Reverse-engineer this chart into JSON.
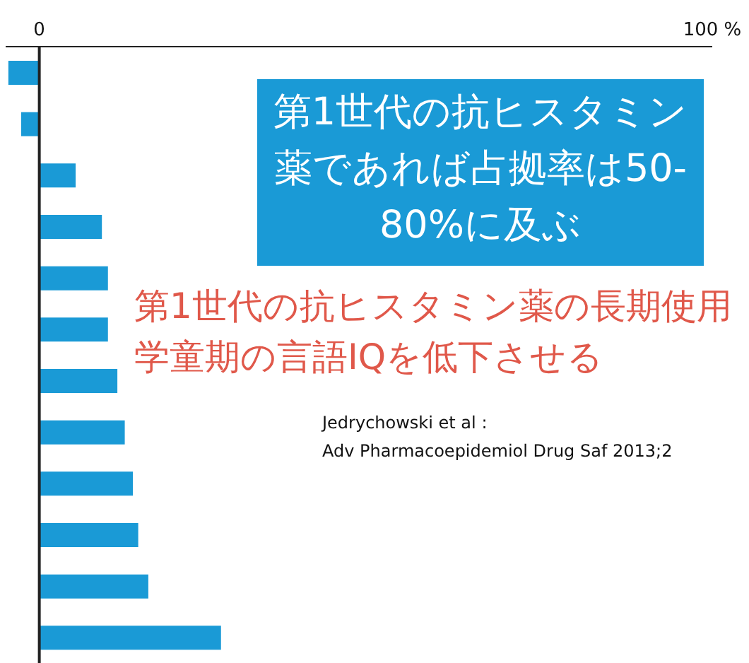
{
  "chart_data": {
    "type": "bar",
    "orientation": "horizontal",
    "categories": [
      null,
      null,
      null,
      null,
      null,
      null,
      null,
      null,
      null,
      null,
      null,
      null
    ],
    "values": [
      -4.6,
      -2.7,
      5.4,
      9.3,
      10.2,
      10.2,
      11.6,
      12.7,
      13.9,
      14.7,
      16.2,
      27
    ],
    "color": "#1a9ad6",
    "xlim": [
      -5,
      100
    ],
    "xticks": [
      0,
      {
        "value": 100,
        "label": "100 %"
      }
    ],
    "grid": false,
    "ref_lines": [
      {
        "axis": "x",
        "value": 0,
        "color": "#222222"
      }
    ],
    "annotations": [
      "第1世代の抗ヒスタミン薬であれば占拠率は50-80%に及ぶ",
      "第1世代の抗ヒスタミン薬の長期使用",
      "学童期の言語IQを低下させる",
      "Jedrychowski et al :",
      "Adv Pharmacoepidemiol Drug Saf 2013;2"
    ]
  }
}
